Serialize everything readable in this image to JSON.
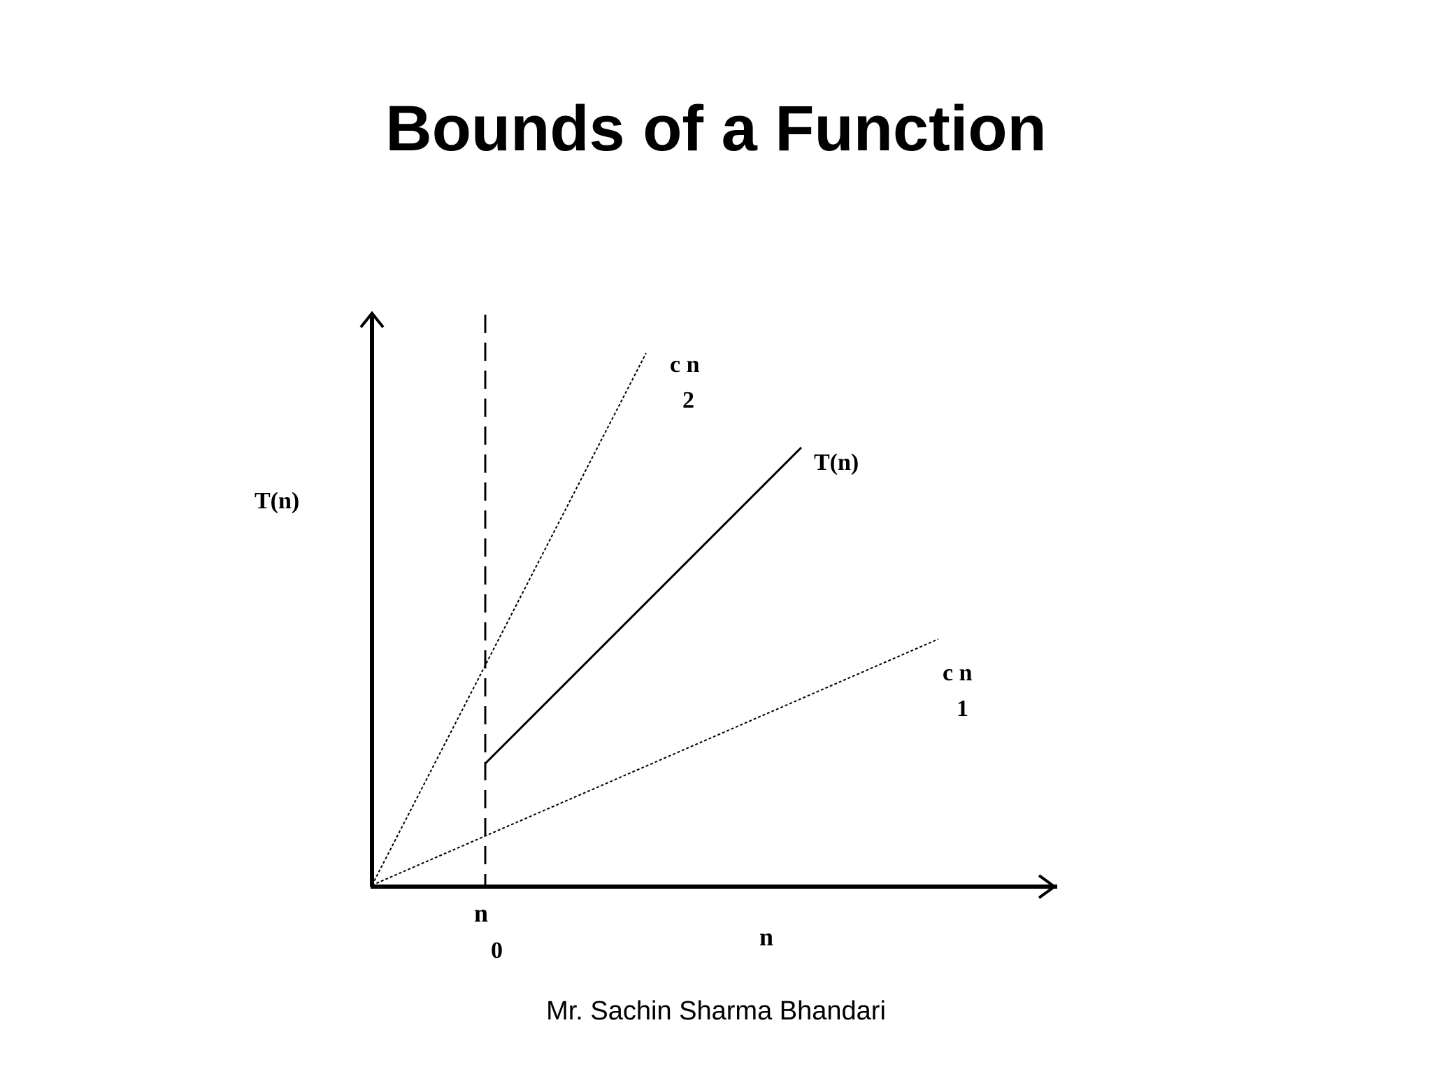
{
  "slide": {
    "title": "Bounds of a Function",
    "footer": "Mr. Sachin Sharma Bhandari"
  },
  "diagram": {
    "y_axis_label": "T(n)",
    "x_axis_label": "n",
    "n0_label_main": "n",
    "n0_label_sub": "0",
    "upper_bound_label_main": "c n",
    "upper_bound_label_sub": "2",
    "function_label": "T(n)",
    "lower_bound_label_main": "c n",
    "lower_bound_label_sub": "1",
    "line_color": "#000000"
  }
}
